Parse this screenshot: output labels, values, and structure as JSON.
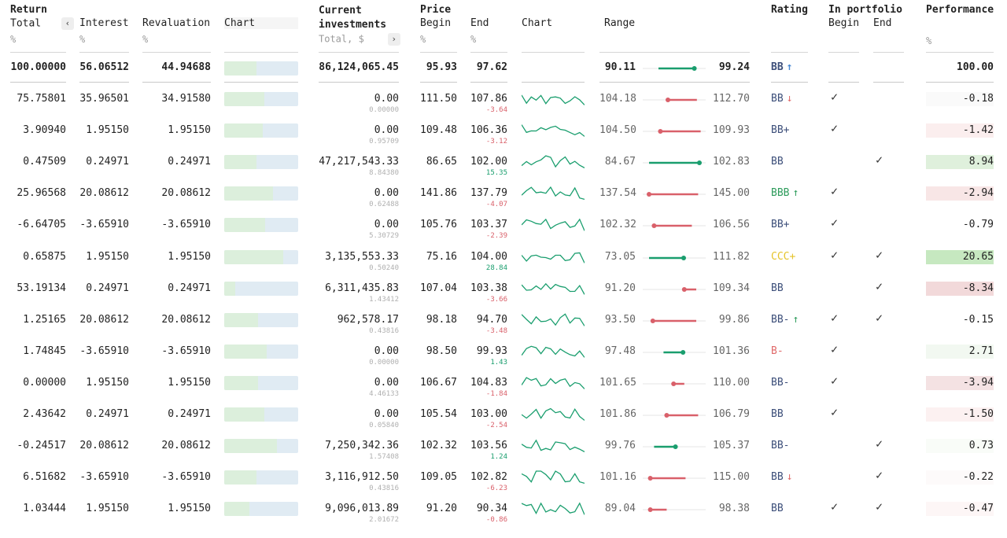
{
  "headers": {
    "return_group": "Return",
    "total": "Total",
    "interest": "Interest",
    "revaluation": "Revaluation",
    "chart": "Chart",
    "current_investments": "Current investments",
    "total_usd": "Total, $",
    "price_group": "Price",
    "begin": "Begin",
    "end": "End",
    "price_chart": "Chart",
    "range": "Range",
    "rating": "Rating",
    "in_portfolio": "In portfolio",
    "portfolio_begin": "Begin",
    "portfolio_end": "End",
    "performance": "Performance",
    "unit_pct": "%",
    "sort_left_icon": "chevron-left",
    "sort_right_icon": "chevron-right"
  },
  "totals": {
    "total": "100.00000",
    "interest": "56.06512",
    "revaluation": "44.94688",
    "chart_fill": 0.44,
    "investments": "86,124,065.45",
    "price_begin": "95.93",
    "price_end": "97.62",
    "range_low": "90.11",
    "range_high": "99.24",
    "range_dot_from": 0.25,
    "range_dot_to": 0.82,
    "range_color": "#1a9e6e",
    "rating": "BB",
    "rating_arrow": "↑",
    "rating_arrow_color": "#4a8ad4",
    "performance": "100.00"
  },
  "colors": {
    "green": "#1a9e6e",
    "red": "#d9606a",
    "rating_default": "#3d4f7a",
    "rating_green": "#2e9c5c",
    "rating_yellow": "#e5c32a",
    "rating_red": "#e06a6a"
  },
  "rows": [
    {
      "total": "75.75801",
      "interest": "35.96501",
      "revaluation": "34.91580",
      "fill": 0.54,
      "inv": "0.00",
      "inv_sub": "0.00000",
      "pb": "111.50",
      "pe": "107.86",
      "chg": "-3.64",
      "chg_pos": false,
      "rlow": "104.18",
      "rhigh": "112.70",
      "r_from": 0.4,
      "r_to": 0.86,
      "r_pos": false,
      "rating": "BB",
      "rating_arrow": "↓",
      "rating_color": "#3d4f7a",
      "arrow_color": "#e06a6a",
      "pf_begin": true,
      "pf_end": false,
      "perf": "-0.18",
      "perf_bg": "#fafafa"
    },
    {
      "total": "3.90940",
      "interest": "1.95150",
      "revaluation": "1.95150",
      "fill": 0.52,
      "inv": "0.00",
      "inv_sub": "0.95709",
      "pb": "109.48",
      "pe": "106.36",
      "chg": "-3.12",
      "chg_pos": false,
      "rlow": "104.50",
      "rhigh": "109.93",
      "r_from": 0.28,
      "r_to": 0.92,
      "r_pos": false,
      "rating": "BB+",
      "rating_arrow": "",
      "rating_color": "#3d4f7a",
      "arrow_color": "",
      "pf_begin": true,
      "pf_end": false,
      "perf": "-1.42",
      "perf_bg": "#fbeeee"
    },
    {
      "total": "0.47509",
      "interest": "0.24971",
      "revaluation": "0.24971",
      "fill": 0.44,
      "inv": "47,217,543.33",
      "inv_sub": "8.84380",
      "pb": "86.65",
      "pe": "102.00",
      "chg": "15.35",
      "chg_pos": true,
      "rlow": "84.67",
      "rhigh": "102.83",
      "r_from": 0.1,
      "r_to": 0.9,
      "r_pos": true,
      "rating": "BB",
      "rating_arrow": "",
      "rating_color": "#3d4f7a",
      "arrow_color": "",
      "pf_begin": false,
      "pf_end": true,
      "perf": "8.94",
      "perf_bg": "#dff0dc"
    },
    {
      "total": "25.96568",
      "interest": "20.08612",
      "revaluation": "20.08612",
      "fill": 0.66,
      "inv": "0.00",
      "inv_sub": "0.62488",
      "pb": "141.86",
      "pe": "137.79",
      "chg": "-4.07",
      "chg_pos": false,
      "rlow": "137.54",
      "rhigh": "145.00",
      "r_from": 0.1,
      "r_to": 0.88,
      "r_pos": false,
      "rating": "BBB",
      "rating_arrow": "↑",
      "rating_color": "#2e9c5c",
      "arrow_color": "#2e9c5c",
      "pf_begin": true,
      "pf_end": false,
      "perf": "-2.94",
      "perf_bg": "#f8e6e6"
    },
    {
      "total": "-6.64705",
      "interest": "-3.65910",
      "revaluation": "-3.65910",
      "fill": 0.55,
      "inv": "0.00",
      "inv_sub": "5.30729",
      "pb": "105.76",
      "pe": "103.37",
      "chg": "-2.39",
      "chg_pos": false,
      "rlow": "102.32",
      "rhigh": "106.56",
      "r_from": 0.18,
      "r_to": 0.78,
      "r_pos": false,
      "rating": "BB+",
      "rating_arrow": "",
      "rating_color": "#3d4f7a",
      "arrow_color": "",
      "pf_begin": true,
      "pf_end": false,
      "perf": "-0.79",
      "perf_bg": "#ffffff"
    },
    {
      "total": "0.65875",
      "interest": "1.95150",
      "revaluation": "1.95150",
      "fill": 0.8,
      "inv": "3,135,553.33",
      "inv_sub": "0.50240",
      "pb": "75.16",
      "pe": "104.00",
      "chg": "28.84",
      "chg_pos": true,
      "rlow": "73.05",
      "rhigh": "111.82",
      "r_from": 0.1,
      "r_to": 0.65,
      "r_pos": true,
      "rating": "CCC+",
      "rating_arrow": "",
      "rating_color": "#e5c32a",
      "arrow_color": "",
      "pf_begin": true,
      "pf_end": true,
      "perf": "20.65",
      "perf_bg": "#c6e8c0"
    },
    {
      "total": "53.19134",
      "interest": "0.24971",
      "revaluation": "0.24971",
      "fill": 0.15,
      "inv": "6,311,435.83",
      "inv_sub": "1.43412",
      "pb": "107.04",
      "pe": "103.38",
      "chg": "-3.66",
      "chg_pos": false,
      "rlow": "91.20",
      "rhigh": "109.34",
      "r_from": 0.66,
      "r_to": 0.85,
      "r_pos": false,
      "rating": "BB",
      "rating_arrow": "",
      "rating_color": "#3d4f7a",
      "arrow_color": "",
      "pf_begin": false,
      "pf_end": true,
      "perf": "-8.34",
      "perf_bg": "#f2d9da"
    },
    {
      "total": "1.25165",
      "interest": "20.08612",
      "revaluation": "20.08612",
      "fill": 0.46,
      "inv": "962,578.17",
      "inv_sub": "0.43816",
      "pb": "98.18",
      "pe": "94.70",
      "chg": "-3.48",
      "chg_pos": false,
      "rlow": "93.50",
      "rhigh": "99.86",
      "r_from": 0.16,
      "r_to": 0.85,
      "r_pos": false,
      "rating": "BB-",
      "rating_arrow": "↑",
      "rating_color": "#3d4f7a",
      "arrow_color": "#2e9c5c",
      "pf_begin": true,
      "pf_end": true,
      "perf": "-0.15",
      "perf_bg": "#ffffff"
    },
    {
      "total": "1.74845",
      "interest": "-3.65910",
      "revaluation": "-3.65910",
      "fill": 0.57,
      "inv": "0.00",
      "inv_sub": "0.00000",
      "pb": "98.50",
      "pe": "99.93",
      "chg": "1.43",
      "chg_pos": true,
      "rlow": "97.48",
      "rhigh": "101.36",
      "r_from": 0.33,
      "r_to": 0.64,
      "r_pos": true,
      "rating": "B-",
      "rating_arrow": "",
      "rating_color": "#e06a6a",
      "arrow_color": "",
      "pf_begin": true,
      "pf_end": false,
      "perf": "2.71",
      "perf_bg": "#f2f8f1"
    },
    {
      "total": "0.00000",
      "interest": "1.95150",
      "revaluation": "1.95150",
      "fill": 0.46,
      "inv": "0.00",
      "inv_sub": "4.46133",
      "pb": "106.67",
      "pe": "104.83",
      "chg": "-1.84",
      "chg_pos": false,
      "rlow": "101.65",
      "rhigh": "110.00",
      "r_from": 0.49,
      "r_to": 0.66,
      "r_pos": false,
      "rating": "BB-",
      "rating_arrow": "",
      "rating_color": "#3d4f7a",
      "arrow_color": "",
      "pf_begin": true,
      "pf_end": false,
      "perf": "-3.94",
      "perf_bg": "#f4e2e3"
    },
    {
      "total": "2.43642",
      "interest": "0.24971",
      "revaluation": "0.24971",
      "fill": 0.54,
      "inv": "0.00",
      "inv_sub": "0.05840",
      "pb": "105.54",
      "pe": "103.00",
      "chg": "-2.54",
      "chg_pos": false,
      "rlow": "101.86",
      "rhigh": "106.79",
      "r_from": 0.38,
      "r_to": 0.88,
      "r_pos": false,
      "rating": "BB",
      "rating_arrow": "",
      "rating_color": "#3d4f7a",
      "arrow_color": "",
      "pf_begin": true,
      "pf_end": false,
      "perf": "-1.50",
      "perf_bg": "#fcf1f1"
    },
    {
      "total": "-0.24517",
      "interest": "20.08612",
      "revaluation": "20.08612",
      "fill": 0.71,
      "inv": "7,250,342.36",
      "inv_sub": "1.57408",
      "pb": "102.32",
      "pe": "103.56",
      "chg": "1.24",
      "chg_pos": true,
      "rlow": "99.76",
      "rhigh": "105.37",
      "r_from": 0.18,
      "r_to": 0.52,
      "r_pos": true,
      "rating": "BB-",
      "rating_arrow": "",
      "rating_color": "#3d4f7a",
      "arrow_color": "",
      "pf_begin": false,
      "pf_end": true,
      "perf": "0.73",
      "perf_bg": "#f9fcf8"
    },
    {
      "total": "6.51682",
      "interest": "-3.65910",
      "revaluation": "-3.65910",
      "fill": 0.44,
      "inv": "3,116,912.50",
      "inv_sub": "0.43816",
      "pb": "109.05",
      "pe": "102.82",
      "chg": "-6.23",
      "chg_pos": false,
      "rlow": "101.16",
      "rhigh": "115.00",
      "r_from": 0.12,
      "r_to": 0.68,
      "r_pos": false,
      "rating": "BB",
      "rating_arrow": "↓",
      "rating_color": "#3d4f7a",
      "arrow_color": "#e06a6a",
      "pf_begin": false,
      "pf_end": true,
      "perf": "-0.22",
      "perf_bg": "#fdfafa"
    },
    {
      "total": "1.03444",
      "interest": "1.95150",
      "revaluation": "1.95150",
      "fill": 0.34,
      "inv": "9,096,013.89",
      "inv_sub": "2.01672",
      "pb": "91.20",
      "pe": "90.34",
      "chg": "-0.86",
      "chg_pos": false,
      "rlow": "89.04",
      "rhigh": "98.38",
      "r_from": 0.12,
      "r_to": 0.38,
      "r_pos": false,
      "rating": "BB",
      "rating_arrow": "",
      "rating_color": "#3d4f7a",
      "arrow_color": "",
      "pf_begin": true,
      "pf_end": true,
      "perf": "-0.47",
      "perf_bg": "#fdf6f6"
    }
  ]
}
